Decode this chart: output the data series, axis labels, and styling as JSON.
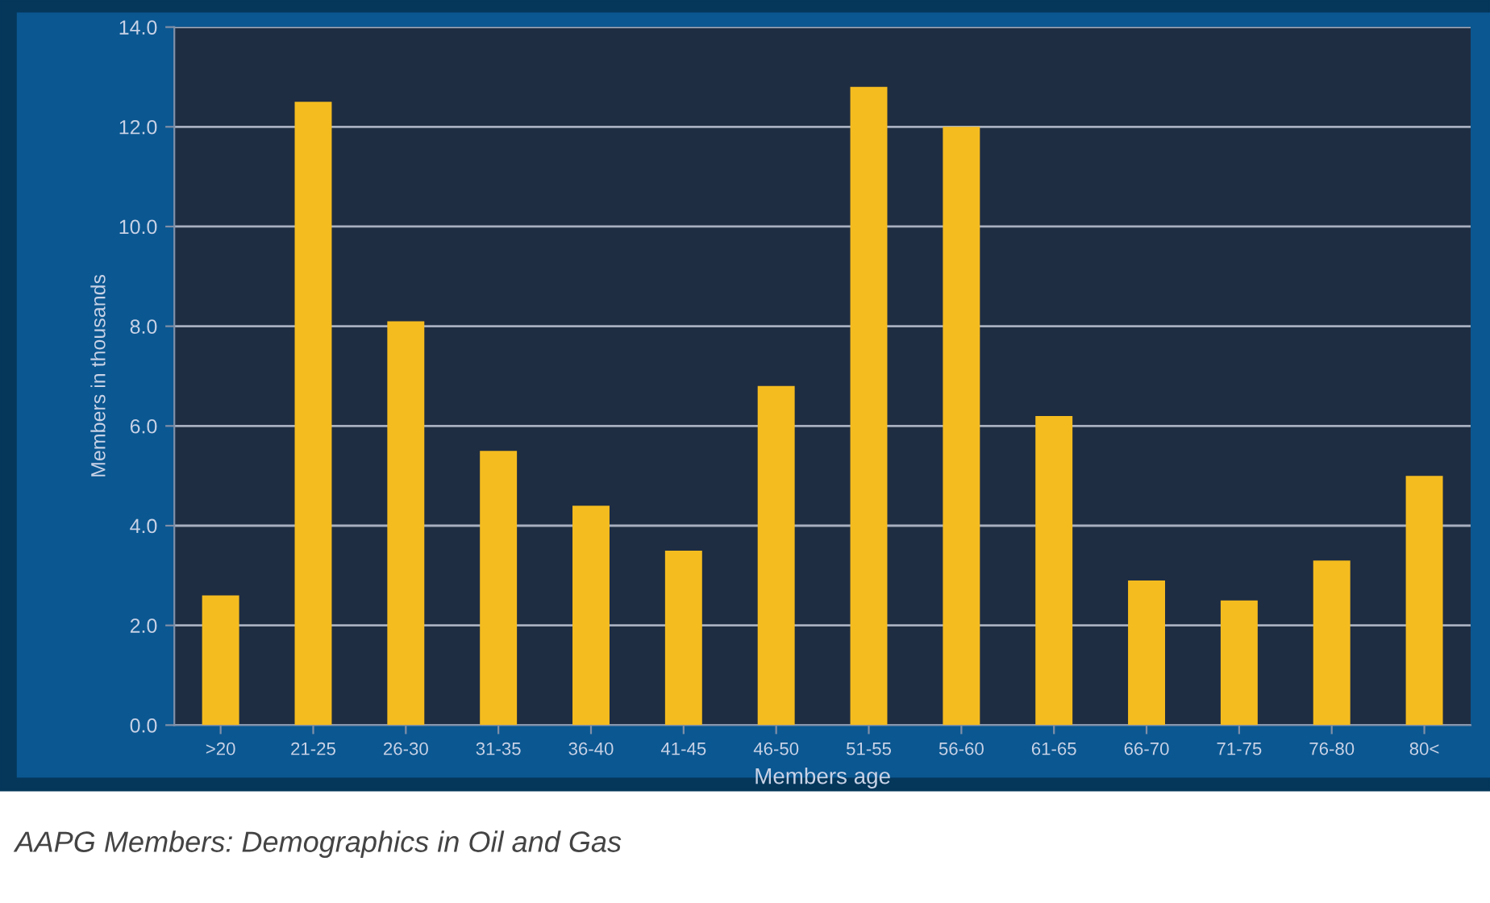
{
  "chart_data": {
    "type": "bar",
    "xlabel": "Members age",
    "ylabel": "Members in thousands",
    "categories": [
      ">20",
      "21-25",
      "26-30",
      "31-35",
      "36-40",
      "41-45",
      "46-50",
      "51-55",
      "56-60",
      "61-65",
      "66-70",
      "71-75",
      "76-80",
      "80<"
    ],
    "values": [
      2.6,
      12.5,
      8.1,
      5.5,
      4.4,
      3.5,
      6.8,
      12.8,
      12.0,
      6.2,
      2.9,
      2.5,
      3.3,
      5.0
    ],
    "color": "#f5bc1f",
    "ylim": [
      0,
      14
    ],
    "yticks": [
      {
        "value": 0,
        "label": "0.0"
      },
      {
        "value": 2,
        "label": "2.0"
      },
      {
        "value": 4,
        "label": "4.0"
      },
      {
        "value": 6,
        "label": "6.0"
      },
      {
        "value": 8,
        "label": "8.0"
      },
      {
        "value": 10,
        "label": "10.0"
      },
      {
        "value": 12,
        "label": "12.0"
      },
      {
        "value": 14,
        "label": "14.0"
      }
    ],
    "grid": "y",
    "annotations": [
      "AAPG Members: Demographics in Oil and Gas"
    ]
  }
}
